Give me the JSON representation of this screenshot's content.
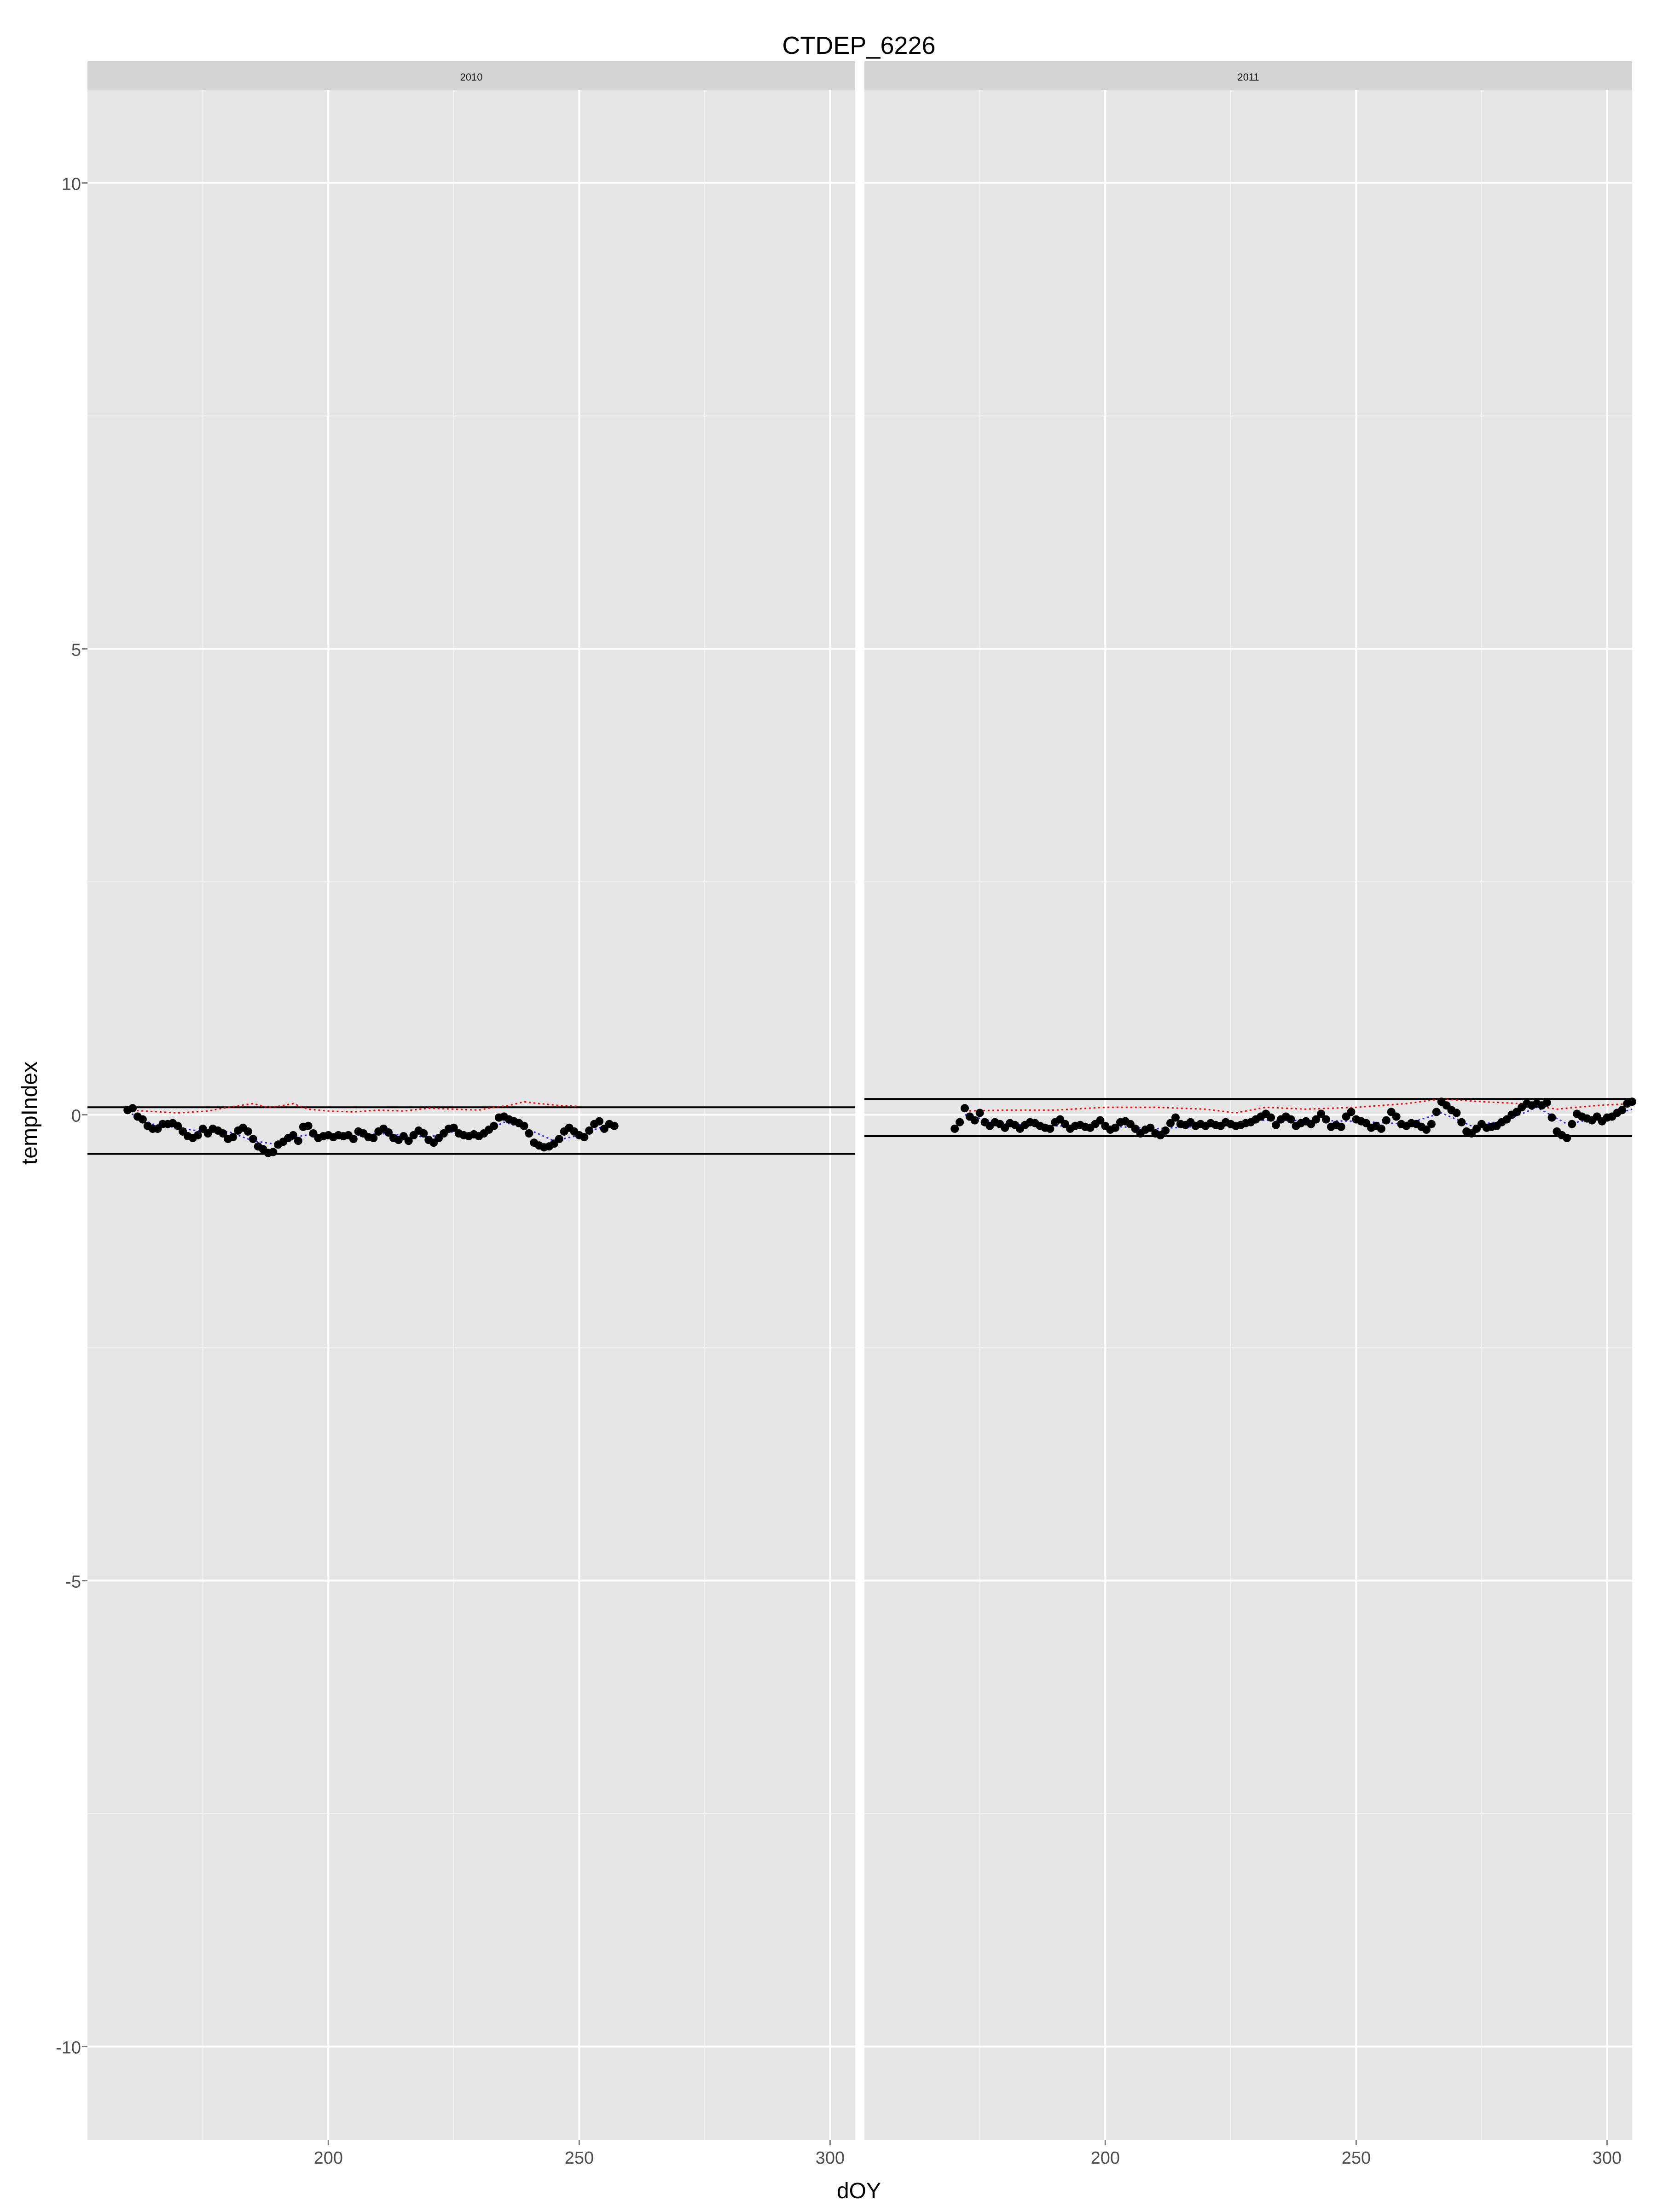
{
  "chart_data": {
    "type": "scatter",
    "title": "CTDEP_6226",
    "xlabel": "dOY",
    "ylabel": "tempIndex",
    "ylim": [
      -11,
      11
    ],
    "yticks": [
      -10,
      -5,
      0,
      5,
      10
    ],
    "y_tick_labels": [
      "-10",
      "-5",
      "0",
      "5",
      "10"
    ],
    "xticks": [
      200,
      250,
      300
    ],
    "x_tick_labels": [
      "200",
      "250",
      "300"
    ],
    "grid": true,
    "legend": "none",
    "colors": {
      "panel_background": "#e5e5e5",
      "strip_background": "#d4d4d4",
      "grid": "#ffffff",
      "points": "#000000",
      "upper_dotted_line": "#ff0000",
      "lower_dotted_line": "#2222ee",
      "threshold_lines": "#000000"
    },
    "panels": [
      {
        "strip": "2010",
        "xlim": [
          152,
          305
        ],
        "thresholds": [
          0.08,
          -0.42
        ],
        "points": [
          [
            160,
            0.05
          ],
          [
            161,
            0.07
          ],
          [
            162,
            -0.02
          ],
          [
            163,
            -0.05
          ],
          [
            164,
            -0.12
          ],
          [
            165,
            -0.15
          ],
          [
            166,
            -0.15
          ],
          [
            167,
            -0.1
          ],
          [
            168,
            -0.1
          ],
          [
            169,
            -0.09
          ],
          [
            170,
            -0.12
          ],
          [
            171,
            -0.18
          ],
          [
            172,
            -0.23
          ],
          [
            173,
            -0.25
          ],
          [
            174,
            -0.22
          ],
          [
            175,
            -0.15
          ],
          [
            176,
            -0.2
          ],
          [
            177,
            -0.15
          ],
          [
            178,
            -0.17
          ],
          [
            179,
            -0.2
          ],
          [
            180,
            -0.26
          ],
          [
            181,
            -0.24
          ],
          [
            182,
            -0.17
          ],
          [
            183,
            -0.14
          ],
          [
            184,
            -0.18
          ],
          [
            185,
            -0.26
          ],
          [
            186,
            -0.34
          ],
          [
            187,
            -0.37
          ],
          [
            188,
            -0.41
          ],
          [
            189,
            -0.4
          ],
          [
            190,
            -0.32
          ],
          [
            191,
            -0.29
          ],
          [
            192,
            -0.25
          ],
          [
            193,
            -0.22
          ],
          [
            194,
            -0.28
          ],
          [
            195,
            -0.13
          ],
          [
            196,
            -0.12
          ],
          [
            197,
            -0.2
          ],
          [
            198,
            -0.25
          ],
          [
            199,
            -0.23
          ],
          [
            200,
            -0.22
          ],
          [
            201,
            -0.24
          ],
          [
            202,
            -0.22
          ],
          [
            203,
            -0.23
          ],
          [
            204,
            -0.22
          ],
          [
            205,
            -0.26
          ],
          [
            206,
            -0.18
          ],
          [
            207,
            -0.2
          ],
          [
            208,
            -0.24
          ],
          [
            209,
            -0.25
          ],
          [
            210,
            -0.18
          ],
          [
            211,
            -0.15
          ],
          [
            212,
            -0.19
          ],
          [
            213,
            -0.25
          ],
          [
            214,
            -0.27
          ],
          [
            215,
            -0.23
          ],
          [
            216,
            -0.28
          ],
          [
            217,
            -0.22
          ],
          [
            218,
            -0.17
          ],
          [
            219,
            -0.2
          ],
          [
            220,
            -0.27
          ],
          [
            221,
            -0.3
          ],
          [
            222,
            -0.25
          ],
          [
            223,
            -0.2
          ],
          [
            224,
            -0.15
          ],
          [
            225,
            -0.14
          ],
          [
            226,
            -0.2
          ],
          [
            227,
            -0.22
          ],
          [
            228,
            -0.23
          ],
          [
            229,
            -0.21
          ],
          [
            230,
            -0.23
          ],
          [
            231,
            -0.2
          ],
          [
            232,
            -0.16
          ],
          [
            233,
            -0.12
          ],
          [
            234,
            -0.03
          ],
          [
            235,
            -0.02
          ],
          [
            236,
            -0.05
          ],
          [
            237,
            -0.07
          ],
          [
            238,
            -0.09
          ],
          [
            239,
            -0.12
          ],
          [
            240,
            -0.2
          ],
          [
            241,
            -0.3
          ],
          [
            242,
            -0.33
          ],
          [
            243,
            -0.35
          ],
          [
            244,
            -0.34
          ],
          [
            245,
            -0.31
          ],
          [
            246,
            -0.26
          ],
          [
            247,
            -0.18
          ],
          [
            248,
            -0.14
          ],
          [
            249,
            -0.18
          ],
          [
            250,
            -0.22
          ],
          [
            251,
            -0.24
          ],
          [
            252,
            -0.17
          ],
          [
            253,
            -0.1
          ],
          [
            254,
            -0.07
          ],
          [
            255,
            -0.15
          ],
          [
            256,
            -0.1
          ],
          [
            257,
            -0.12
          ]
        ],
        "upper_line": [
          [
            160,
            0.05
          ],
          [
            170,
            0.02
          ],
          [
            176,
            0.04
          ],
          [
            180,
            0.08
          ],
          [
            185,
            0.12
          ],
          [
            188,
            0.08
          ],
          [
            190,
            0.09
          ],
          [
            193,
            0.12
          ],
          [
            196,
            0.06
          ],
          [
            200,
            0.04
          ],
          [
            205,
            0.03
          ],
          [
            210,
            0.05
          ],
          [
            215,
            0.04
          ],
          [
            220,
            0.07
          ],
          [
            225,
            0.06
          ],
          [
            230,
            0.05
          ],
          [
            233,
            0.08
          ],
          [
            236,
            0.1
          ],
          [
            239,
            0.14
          ],
          [
            242,
            0.12
          ],
          [
            246,
            0.1
          ],
          [
            250,
            0.09
          ]
        ],
        "lower_line": [
          [
            160,
            0.03
          ],
          [
            165,
            -0.1
          ],
          [
            170,
            -0.14
          ],
          [
            175,
            -0.18
          ],
          [
            180,
            -0.18
          ],
          [
            185,
            -0.28
          ],
          [
            190,
            -0.32
          ],
          [
            195,
            -0.22
          ],
          [
            200,
            -0.22
          ],
          [
            205,
            -0.24
          ],
          [
            210,
            -0.2
          ],
          [
            215,
            -0.22
          ],
          [
            220,
            -0.24
          ],
          [
            225,
            -0.18
          ],
          [
            230,
            -0.21
          ],
          [
            235,
            -0.08
          ],
          [
            240,
            -0.16
          ],
          [
            245,
            -0.28
          ],
          [
            250,
            -0.22
          ],
          [
            255,
            -0.12
          ]
        ]
      },
      {
        "strip": "2011",
        "xlim": [
          152,
          305
        ],
        "thresholds": [
          0.17,
          -0.23
        ],
        "points": [
          [
            170,
            -0.15
          ],
          [
            171,
            -0.08
          ],
          [
            172,
            0.07
          ],
          [
            173,
            -0.02
          ],
          [
            174,
            -0.06
          ],
          [
            175,
            0.02
          ],
          [
            176,
            -0.08
          ],
          [
            177,
            -0.12
          ],
          [
            178,
            -0.08
          ],
          [
            179,
            -0.1
          ],
          [
            180,
            -0.14
          ],
          [
            181,
            -0.09
          ],
          [
            182,
            -0.11
          ],
          [
            183,
            -0.15
          ],
          [
            184,
            -0.11
          ],
          [
            185,
            -0.08
          ],
          [
            186,
            -0.09
          ],
          [
            187,
            -0.12
          ],
          [
            188,
            -0.14
          ],
          [
            189,
            -0.15
          ],
          [
            190,
            -0.08
          ],
          [
            191,
            -0.05
          ],
          [
            192,
            -0.1
          ],
          [
            193,
            -0.15
          ],
          [
            194,
            -0.12
          ],
          [
            195,
            -0.11
          ],
          [
            196,
            -0.13
          ],
          [
            197,
            -0.14
          ],
          [
            198,
            -0.1
          ],
          [
            199,
            -0.06
          ],
          [
            200,
            -0.12
          ],
          [
            201,
            -0.16
          ],
          [
            202,
            -0.14
          ],
          [
            203,
            -0.08
          ],
          [
            204,
            -0.07
          ],
          [
            205,
            -0.1
          ],
          [
            206,
            -0.15
          ],
          [
            207,
            -0.2
          ],
          [
            208,
            -0.16
          ],
          [
            209,
            -0.14
          ],
          [
            210,
            -0.2
          ],
          [
            211,
            -0.22
          ],
          [
            212,
            -0.17
          ],
          [
            213,
            -0.09
          ],
          [
            214,
            -0.03
          ],
          [
            215,
            -0.1
          ],
          [
            216,
            -0.11
          ],
          [
            217,
            -0.08
          ],
          [
            218,
            -0.12
          ],
          [
            219,
            -0.1
          ],
          [
            220,
            -0.12
          ],
          [
            221,
            -0.09
          ],
          [
            222,
            -0.11
          ],
          [
            223,
            -0.12
          ],
          [
            224,
            -0.08
          ],
          [
            225,
            -0.1
          ],
          [
            226,
            -0.12
          ],
          [
            227,
            -0.11
          ],
          [
            228,
            -0.09
          ],
          [
            229,
            -0.08
          ],
          [
            230,
            -0.05
          ],
          [
            231,
            -0.02
          ],
          [
            232,
            0.01
          ],
          [
            233,
            -0.03
          ],
          [
            234,
            -0.11
          ],
          [
            235,
            -0.05
          ],
          [
            236,
            -0.02
          ],
          [
            237,
            -0.05
          ],
          [
            238,
            -0.12
          ],
          [
            239,
            -0.09
          ],
          [
            240,
            -0.07
          ],
          [
            241,
            -0.1
          ],
          [
            242,
            -0.05
          ],
          [
            243,
            0.01
          ],
          [
            244,
            -0.05
          ],
          [
            245,
            -0.13
          ],
          [
            246,
            -0.11
          ],
          [
            247,
            -0.13
          ],
          [
            248,
            -0.02
          ],
          [
            249,
            0.03
          ],
          [
            250,
            -0.05
          ],
          [
            251,
            -0.07
          ],
          [
            252,
            -0.09
          ],
          [
            253,
            -0.14
          ],
          [
            254,
            -0.12
          ],
          [
            255,
            -0.15
          ],
          [
            256,
            -0.06
          ],
          [
            257,
            0.03
          ],
          [
            258,
            -0.02
          ],
          [
            259,
            -0.1
          ],
          [
            260,
            -0.12
          ],
          [
            261,
            -0.09
          ],
          [
            262,
            -0.1
          ],
          [
            263,
            -0.13
          ],
          [
            264,
            -0.16
          ],
          [
            265,
            -0.1
          ],
          [
            266,
            0.03
          ],
          [
            267,
            0.14
          ],
          [
            268,
            0.1
          ],
          [
            269,
            0.05
          ],
          [
            270,
            0.02
          ],
          [
            271,
            -0.08
          ],
          [
            272,
            -0.18
          ],
          [
            273,
            -0.2
          ],
          [
            274,
            -0.15
          ],
          [
            275,
            -0.1
          ],
          [
            276,
            -0.14
          ],
          [
            277,
            -0.13
          ],
          [
            278,
            -0.12
          ],
          [
            279,
            -0.08
          ],
          [
            280,
            -0.05
          ],
          [
            281,
            0.0
          ],
          [
            282,
            0.03
          ],
          [
            283,
            0.08
          ],
          [
            284,
            0.12
          ],
          [
            285,
            0.1
          ],
          [
            286,
            0.12
          ],
          [
            287,
            0.1
          ],
          [
            288,
            0.13
          ],
          [
            289,
            -0.03
          ],
          [
            290,
            -0.18
          ],
          [
            291,
            -0.22
          ],
          [
            292,
            -0.25
          ],
          [
            293,
            -0.1
          ],
          [
            294,
            0.01
          ],
          [
            295,
            -0.02
          ],
          [
            296,
            -0.04
          ],
          [
            297,
            -0.06
          ],
          [
            298,
            -0.02
          ],
          [
            299,
            -0.07
          ],
          [
            300,
            -0.03
          ],
          [
            301,
            -0.02
          ],
          [
            302,
            0.02
          ],
          [
            303,
            0.05
          ],
          [
            304,
            0.12
          ],
          [
            305,
            0.14
          ]
        ],
        "upper_line": [
          [
            172,
            0.04
          ],
          [
            180,
            0.05
          ],
          [
            190,
            0.05
          ],
          [
            200,
            0.08
          ],
          [
            210,
            0.08
          ],
          [
            220,
            0.06
          ],
          [
            226,
            0.02
          ],
          [
            232,
            0.08
          ],
          [
            240,
            0.06
          ],
          [
            250,
            0.08
          ],
          [
            260,
            0.12
          ],
          [
            267,
            0.17
          ],
          [
            275,
            0.14
          ],
          [
            283,
            0.12
          ],
          [
            290,
            0.06
          ],
          [
            298,
            0.1
          ],
          [
            305,
            0.12
          ]
        ],
        "lower_line": [
          [
            172,
            0.0
          ],
          [
            180,
            -0.1
          ],
          [
            190,
            -0.12
          ],
          [
            200,
            -0.12
          ],
          [
            210,
            -0.15
          ],
          [
            220,
            -0.12
          ],
          [
            230,
            -0.06
          ],
          [
            240,
            -0.06
          ],
          [
            250,
            -0.07
          ],
          [
            260,
            -0.1
          ],
          [
            267,
            0.02
          ],
          [
            273,
            -0.12
          ],
          [
            280,
            -0.06
          ],
          [
            286,
            0.08
          ],
          [
            292,
            -0.1
          ],
          [
            300,
            -0.02
          ],
          [
            305,
            0.06
          ]
        ]
      }
    ]
  }
}
